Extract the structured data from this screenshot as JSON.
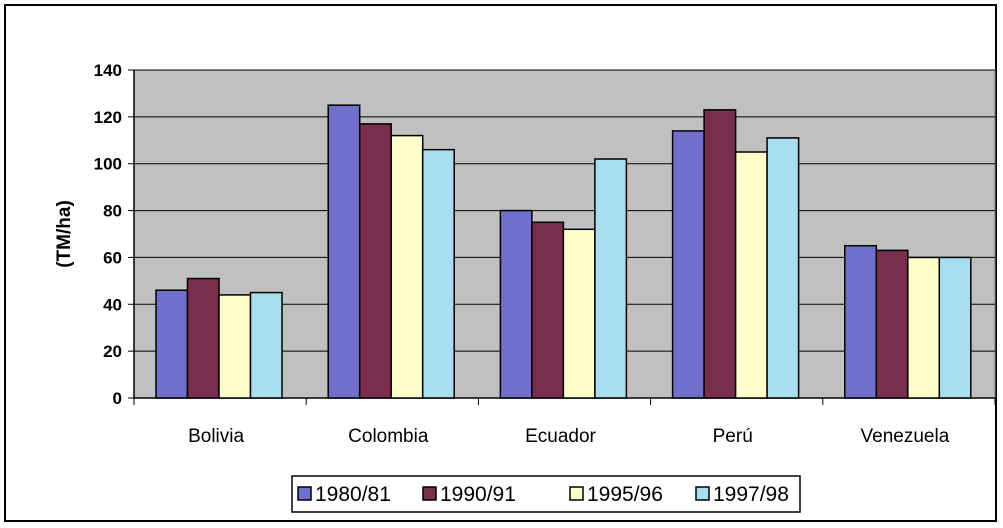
{
  "chart_data": {
    "type": "bar",
    "title": "",
    "xlabel": "",
    "ylabel": "(TM/ha)",
    "ylim": [
      0,
      140
    ],
    "yticks": [
      0,
      20,
      40,
      60,
      80,
      100,
      120,
      140
    ],
    "grid": true,
    "legend_position": "bottom",
    "categories": [
      "Bolivia",
      "Colombia",
      "Ecuador",
      "Perú",
      "Venezuela"
    ],
    "series": [
      {
        "name": "1980/81",
        "color": "#7070cc",
        "values": [
          46,
          125,
          80,
          114,
          65
        ]
      },
      {
        "name": "1990/91",
        "color": "#7a2e4e",
        "values": [
          51,
          117,
          75,
          123,
          63
        ]
      },
      {
        "name": "1995/96",
        "color": "#ffffcc",
        "values": [
          44,
          112,
          72,
          105,
          60
        ]
      },
      {
        "name": "1997/98",
        "color": "#a8def0",
        "values": [
          45,
          106,
          102,
          111,
          60
        ]
      }
    ],
    "plot_background": "#c0c0c0"
  }
}
